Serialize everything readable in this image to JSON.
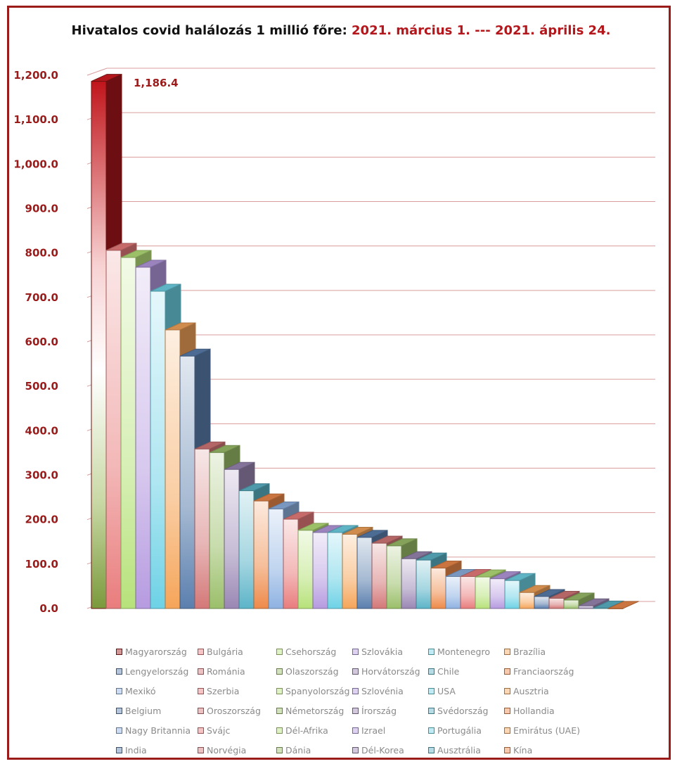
{
  "title": {
    "prefix": "Hivatalos covid halálozás 1 millió főre: ",
    "period": "2021. március 1. --- 2021. április 24."
  },
  "chart_data": {
    "type": "bar",
    "title": "Hivatalos covid halálozás 1 millió főre: 2021. március 1. --- 2021. április 24.",
    "ylim": [
      0,
      1200
    ],
    "y_ticks": [
      "0.0",
      "100.0",
      "200.0",
      "300.0",
      "400.0",
      "500.0",
      "600.0",
      "700.0",
      "800.0",
      "900.0",
      "1,000.0",
      "1,100.0",
      "1,200.0"
    ],
    "grid": true,
    "legend_position": "bottom",
    "data_label": "1,186.4",
    "categories": [
      "Magyarország",
      "Bulgária",
      "Csehország",
      "Szlovákia",
      "Montenegro",
      "Brazília",
      "Lengyelország",
      "Románia",
      "Olaszország",
      "Horvátország",
      "Chile",
      "Franciaország",
      "Mexikó",
      "Szerbia",
      "Spanyolország",
      "Szlovénia",
      "USA",
      "Ausztria",
      "Belgium",
      "Oroszország",
      "Németország",
      "Írország",
      "Svédország",
      "Hollandia",
      "Nagy Britannia",
      "Svájc",
      "Dél-Afrika",
      "Izrael",
      "Portugália",
      "Emirátus (UAE)",
      "India",
      "Norvégia",
      "Dánia",
      "Dél-Korea",
      "Ausztrália",
      "Kína"
    ],
    "values": [
      1186.4,
      806,
      790,
      768,
      714,
      627,
      568,
      359,
      351,
      313,
      265,
      242,
      224,
      201,
      176,
      171,
      171,
      167,
      160,
      147,
      141,
      112,
      109,
      91,
      72,
      72,
      71,
      67,
      63,
      36,
      27,
      23,
      19,
      6,
      1,
      0.1
    ],
    "colors": {
      "first_top": "#c0151b",
      "first_bottom": "#7a9a3c",
      "palette": [
        "#e97d7d",
        "#b7e27a",
        "#b69be0",
        "#6ed2e6",
        "#f5a55a",
        "#5b7fae",
        "#d47878",
        "#9bbf6a",
        "#9a87b4",
        "#5cb4c8",
        "#ee8a4a",
        "#8fb2e2"
      ]
    }
  }
}
